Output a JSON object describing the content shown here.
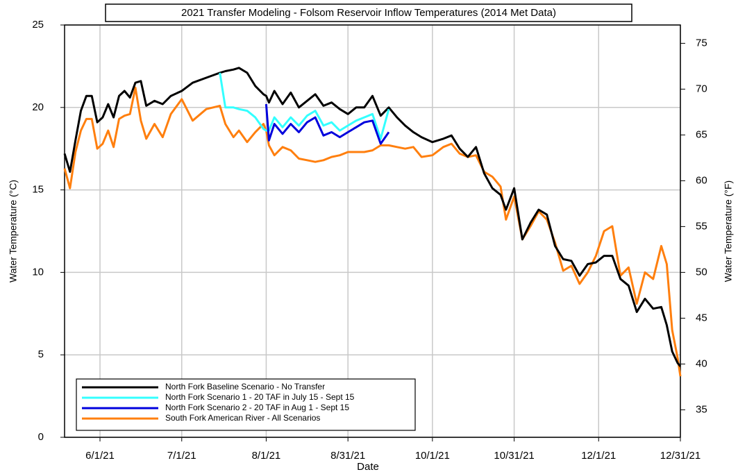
{
  "chart_data": {
    "type": "line",
    "title": "2021 Transfer Modeling - Folsom Reservoir Inflow Temperatures (2014 Met Data)",
    "xlabel": "Date",
    "ylabel": "Water Temperature (°C)",
    "y2label": "Water Temperature (°F)",
    "x": [
      "5/19/21",
      "5/21/21",
      "5/23/21",
      "5/25/21",
      "5/27/21",
      "5/29/21",
      "5/31/21",
      "6/2/21",
      "6/4/21",
      "6/6/21",
      "6/8/21",
      "6/10/21",
      "6/12/21",
      "6/14/21",
      "6/16/21",
      "6/18/21",
      "6/21/21",
      "6/24/21",
      "6/27/21",
      "7/1/21",
      "7/5/21",
      "7/10/21",
      "7/15/21",
      "7/17/21",
      "7/20/21",
      "7/22/21",
      "7/25/21",
      "7/28/21",
      "7/31/21",
      "8/1/21",
      "8/2/21",
      "8/4/21",
      "8/7/21",
      "8/10/21",
      "8/13/21",
      "8/16/21",
      "8/19/21",
      "8/22/21",
      "8/25/21",
      "8/28/21",
      "8/31/21",
      "9/3/21",
      "9/6/21",
      "9/9/21",
      "9/12/21",
      "9/15/21",
      "9/18/21",
      "9/21/21",
      "9/24/21",
      "9/27/21",
      "10/1/21",
      "10/5/21",
      "10/8/21",
      "10/11/21",
      "10/14/21",
      "10/17/21",
      "10/20/21",
      "10/23/21",
      "10/26/21",
      "10/28/21",
      "10/31/21",
      "11/3/21",
      "11/6/21",
      "11/9/21",
      "11/12/21",
      "11/15/21",
      "11/18/21",
      "11/21/21",
      "11/24/21",
      "11/27/21",
      "11/30/21",
      "12/3/21",
      "12/6/21",
      "12/9/21",
      "12/12/21",
      "12/15/21",
      "12/18/21",
      "12/21/21",
      "12/24/21",
      "12/26/21",
      "12/28/21",
      "12/30/21",
      "12/31/21"
    ],
    "series": [
      {
        "name": "North Fork Baseline Scenario - No Transfer",
        "color": "#000000",
        "values": [
          17.2,
          16.1,
          18.0,
          19.8,
          20.7,
          20.7,
          19.1,
          19.4,
          20.2,
          19.4,
          20.7,
          21.0,
          20.6,
          21.5,
          21.6,
          20.1,
          20.4,
          20.2,
          20.7,
          21.0,
          21.5,
          21.8,
          22.1,
          22.2,
          22.3,
          22.4,
          22.1,
          21.3,
          20.8,
          20.7,
          20.3,
          21.0,
          20.2,
          20.9,
          20.0,
          20.4,
          20.8,
          20.1,
          20.3,
          19.9,
          19.6,
          20.0,
          20.0,
          20.7,
          19.5,
          20.0,
          19.4,
          18.9,
          18.5,
          18.2,
          17.9,
          18.1,
          18.3,
          17.5,
          17.0,
          17.6,
          16.0,
          15.1,
          14.7,
          13.8,
          15.1,
          12.0,
          13.0,
          13.8,
          13.5,
          11.6,
          10.8,
          10.7,
          9.8,
          10.5,
          10.6,
          11.0,
          11.0,
          9.6,
          9.2,
          7.6,
          8.4,
          7.8,
          7.9,
          6.8,
          5.2,
          4.5,
          4.3
        ]
      },
      {
        "name": "North Fork Scenario 1 - 20 TAF in July 15 - Sept 15",
        "color": "#33ffff",
        "values": [
          null,
          null,
          null,
          null,
          null,
          null,
          null,
          null,
          null,
          null,
          null,
          null,
          null,
          null,
          null,
          null,
          null,
          null,
          null,
          null,
          null,
          null,
          22.1,
          20.0,
          20.0,
          19.9,
          19.8,
          19.4,
          18.7,
          18.6,
          18.6,
          19.4,
          18.8,
          19.4,
          18.9,
          19.5,
          19.8,
          18.9,
          19.1,
          18.6,
          18.9,
          19.2,
          19.4,
          19.6,
          18.1,
          19.9,
          null,
          null,
          null,
          null,
          null,
          null,
          null,
          null,
          null,
          null,
          null,
          null,
          null,
          null,
          null,
          null,
          null,
          null,
          null,
          null,
          null,
          null,
          null,
          null,
          null,
          null,
          null,
          null,
          null,
          null,
          null,
          null,
          null,
          null,
          null,
          null,
          null
        ]
      },
      {
        "name": "North Fork Scenario 2 - 20 TAF in Aug 1 - Sept 15",
        "color": "#0000dd",
        "values": [
          null,
          null,
          null,
          null,
          null,
          null,
          null,
          null,
          null,
          null,
          null,
          null,
          null,
          null,
          null,
          null,
          null,
          null,
          null,
          null,
          null,
          null,
          null,
          null,
          null,
          null,
          null,
          null,
          null,
          20.2,
          18.0,
          19.0,
          18.4,
          19.0,
          18.5,
          19.1,
          19.4,
          18.3,
          18.5,
          18.2,
          18.5,
          18.8,
          19.1,
          19.2,
          17.8,
          18.5,
          null,
          null,
          null,
          null,
          null,
          null,
          null,
          null,
          null,
          null,
          null,
          null,
          null,
          null,
          null,
          null,
          null,
          null,
          null,
          null,
          null,
          null,
          null,
          null,
          null,
          null,
          null,
          null,
          null,
          null,
          null,
          null,
          null,
          null,
          null,
          null,
          null
        ]
      },
      {
        "name": "South Fork American River - All Scenarios",
        "color": "#ff7f0e",
        "values": [
          16.3,
          15.1,
          17.3,
          18.6,
          19.3,
          19.3,
          17.5,
          17.8,
          18.6,
          17.6,
          19.3,
          19.5,
          19.6,
          21.2,
          19.2,
          18.1,
          19.0,
          18.2,
          19.6,
          20.5,
          19.2,
          19.9,
          20.1,
          19.0,
          18.2,
          18.6,
          17.9,
          18.5,
          19.0,
          18.6,
          17.7,
          17.1,
          17.6,
          17.4,
          16.9,
          16.8,
          16.7,
          16.8,
          17.0,
          17.1,
          17.3,
          17.3,
          17.3,
          17.4,
          17.7,
          17.7,
          17.6,
          17.5,
          17.6,
          17.0,
          17.1,
          17.6,
          17.8,
          17.2,
          17.0,
          17.1,
          16.1,
          15.8,
          15.2,
          13.2,
          14.6,
          12.0,
          12.8,
          13.7,
          13.2,
          11.8,
          10.1,
          10.4,
          9.3,
          10.0,
          11.0,
          12.5,
          12.8,
          9.8,
          10.3,
          8.1,
          10.0,
          9.6,
          11.6,
          10.5,
          6.5,
          4.8,
          3.7
        ]
      }
    ],
    "xlim": [
      "5/19/21",
      "12/31/21"
    ],
    "xticks": [
      "6/1/21",
      "7/1/21",
      "8/1/21",
      "8/31/21",
      "10/1/21",
      "10/31/21",
      "12/1/21",
      "12/31/21"
    ],
    "ylim": [
      0,
      25
    ],
    "yticks": [
      0,
      5,
      10,
      15,
      20,
      25
    ],
    "y2lim": [
      32,
      77
    ],
    "y2ticks": [
      35,
      40,
      45,
      50,
      55,
      60,
      65,
      70,
      75
    ],
    "grid": true,
    "legend": "lower left"
  }
}
